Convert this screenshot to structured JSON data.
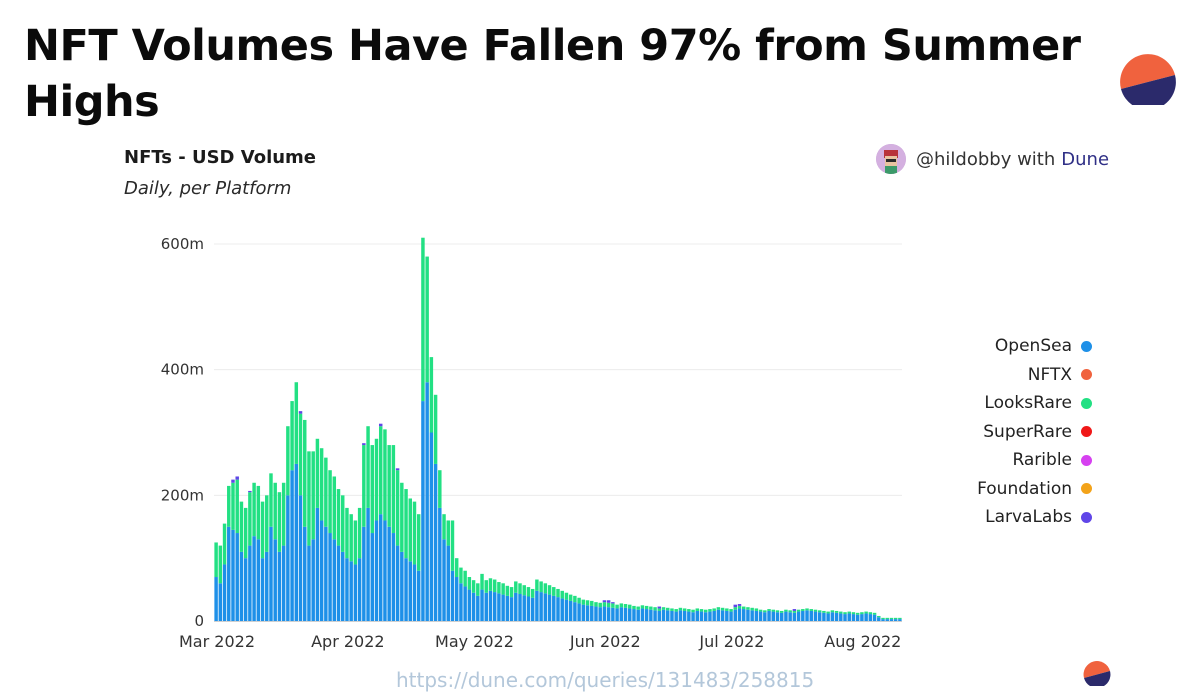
{
  "headline": "NFT Volumes Have Fallen 97% from Summer Highs",
  "attribution": {
    "handle": "@hildobby with",
    "platform": "Dune"
  },
  "source_url": "https://dune.com/queries/131483/258815",
  "colors": {
    "logo_top": "#f0623e",
    "logo_bottom": "#2b2a6b"
  },
  "chart_data": {
    "type": "bar",
    "stacked": true,
    "title": "NFTs - USD Volume",
    "subtitle": "Daily, per Platform",
    "x_ticks": [
      "Mar 2022",
      "Apr 2022",
      "May 2022",
      "Jun 2022",
      "Jul 2022",
      "Aug 2022"
    ],
    "y_ticks": [
      "0",
      "200m",
      "400m",
      "600m"
    ],
    "y_tick_values": [
      0,
      200,
      400,
      600
    ],
    "ylim": [
      0,
      600
    ],
    "y_unit": "millions USD",
    "grid": true,
    "legend_position": "right",
    "series": [
      {
        "name": "OpenSea",
        "color": "#1e90e8"
      },
      {
        "name": "NFTX",
        "color": "#f0623e"
      },
      {
        "name": "LooksRare",
        "color": "#22e083"
      },
      {
        "name": "SuperRare",
        "color": "#f01818"
      },
      {
        "name": "Rarible",
        "color": "#d640f0"
      },
      {
        "name": "Foundation",
        "color": "#f3a31a"
      },
      {
        "name": "LarvaLabs",
        "color": "#6046e8"
      }
    ],
    "opensea_values": [
      70,
      60,
      90,
      150,
      145,
      140,
      110,
      100,
      120,
      135,
      130,
      100,
      110,
      150,
      130,
      110,
      120,
      200,
      240,
      250,
      200,
      150,
      120,
      130,
      180,
      160,
      150,
      140,
      130,
      120,
      110,
      100,
      95,
      90,
      100,
      150,
      180,
      140,
      160,
      170,
      160,
      150,
      140,
      120,
      110,
      100,
      95,
      90,
      80,
      350,
      380,
      300,
      250,
      180,
      130,
      120,
      80,
      70,
      60,
      55,
      50,
      45,
      40,
      50,
      45,
      48,
      46,
      44,
      42,
      40,
      38,
      45,
      43,
      41,
      39,
      37,
      48,
      46,
      44,
      42,
      40,
      38,
      36,
      34,
      32,
      30,
      28,
      26,
      25,
      24,
      23,
      22,
      23,
      22,
      21,
      20,
      22,
      21,
      20,
      19,
      18,
      20,
      19,
      18,
      17,
      16,
      18,
      17,
      16,
      15,
      17,
      16,
      15,
      14,
      16,
      15,
      14,
      15,
      16,
      18,
      17,
      16,
      15,
      18,
      20,
      19,
      18,
      17,
      16,
      15,
      14,
      16,
      15,
      14,
      13,
      15,
      14,
      13,
      15,
      16,
      17,
      16,
      15,
      14,
      13,
      12,
      14,
      13,
      12,
      11,
      12,
      11,
      10,
      11,
      12,
      11,
      10,
      6,
      3,
      3,
      3,
      3,
      3
    ],
    "looksrare_values": [
      55,
      60,
      65,
      65,
      75,
      85,
      80,
      80,
      85,
      85,
      85,
      90,
      90,
      85,
      90,
      95,
      100,
      110,
      110,
      130,
      130,
      170,
      150,
      140,
      110,
      115,
      110,
      100,
      100,
      90,
      90,
      80,
      75,
      70,
      80,
      130,
      130,
      140,
      130,
      140,
      145,
      130,
      140,
      120,
      110,
      110,
      100,
      100,
      90,
      260,
      200,
      120,
      110,
      60,
      40,
      40,
      80,
      30,
      25,
      25,
      20,
      20,
      20,
      25,
      20,
      20,
      20,
      18,
      18,
      16,
      16,
      18,
      17,
      16,
      15,
      14,
      18,
      17,
      16,
      15,
      14,
      13,
      12,
      11,
      10,
      10,
      9,
      8,
      8,
      8,
      7,
      7,
      7,
      7,
      7,
      6,
      6,
      6,
      6,
      5,
      5,
      5,
      5,
      5,
      5,
      4,
      4,
      4,
      4,
      4,
      4,
      4,
      4,
      4,
      4,
      4,
      4,
      4,
      4,
      4,
      4,
      4,
      4,
      4,
      4,
      4,
      4,
      4,
      4,
      3,
      3,
      3,
      3,
      3,
      3,
      3,
      3,
      3,
      3,
      3,
      3,
      3,
      3,
      3,
      3,
      3,
      3,
      3,
      3,
      3,
      3,
      3,
      3,
      3,
      3,
      3,
      3,
      2,
      2,
      2,
      2,
      2,
      2
    ],
    "larvalabs_values": [
      0,
      0,
      0,
      0,
      5,
      5,
      0,
      0,
      2,
      0,
      0,
      0,
      0,
      0,
      0,
      0,
      0,
      0,
      0,
      0,
      4,
      0,
      0,
      0,
      0,
      0,
      0,
      0,
      0,
      0,
      0,
      0,
      0,
      0,
      0,
      3,
      0,
      0,
      0,
      4,
      0,
      0,
      0,
      3,
      0,
      0,
      0,
      0,
      0,
      0,
      0,
      0,
      0,
      0,
      0,
      0,
      0,
      0,
      0,
      0,
      0,
      0,
      0,
      0,
      0,
      0,
      0,
      0,
      0,
      0,
      0,
      0,
      0,
      0,
      0,
      0,
      0,
      0,
      0,
      0,
      0,
      0,
      0,
      0,
      0,
      0,
      0,
      0,
      0,
      0,
      0,
      0,
      3,
      4,
      2,
      0,
      0,
      0,
      0,
      0,
      0,
      0,
      0,
      0,
      0,
      3,
      0,
      0,
      0,
      0,
      0,
      0,
      0,
      0,
      0,
      0,
      0,
      0,
      0,
      0,
      0,
      0,
      0,
      4,
      3,
      0,
      0,
      0,
      0,
      0,
      0,
      0,
      0,
      0,
      0,
      0,
      0,
      3,
      0,
      0,
      0,
      0,
      0,
      0,
      0,
      0,
      0,
      0,
      0,
      0,
      0,
      0,
      0,
      0,
      0,
      0,
      0,
      0,
      0,
      0,
      0,
      0,
      0
    ]
  }
}
